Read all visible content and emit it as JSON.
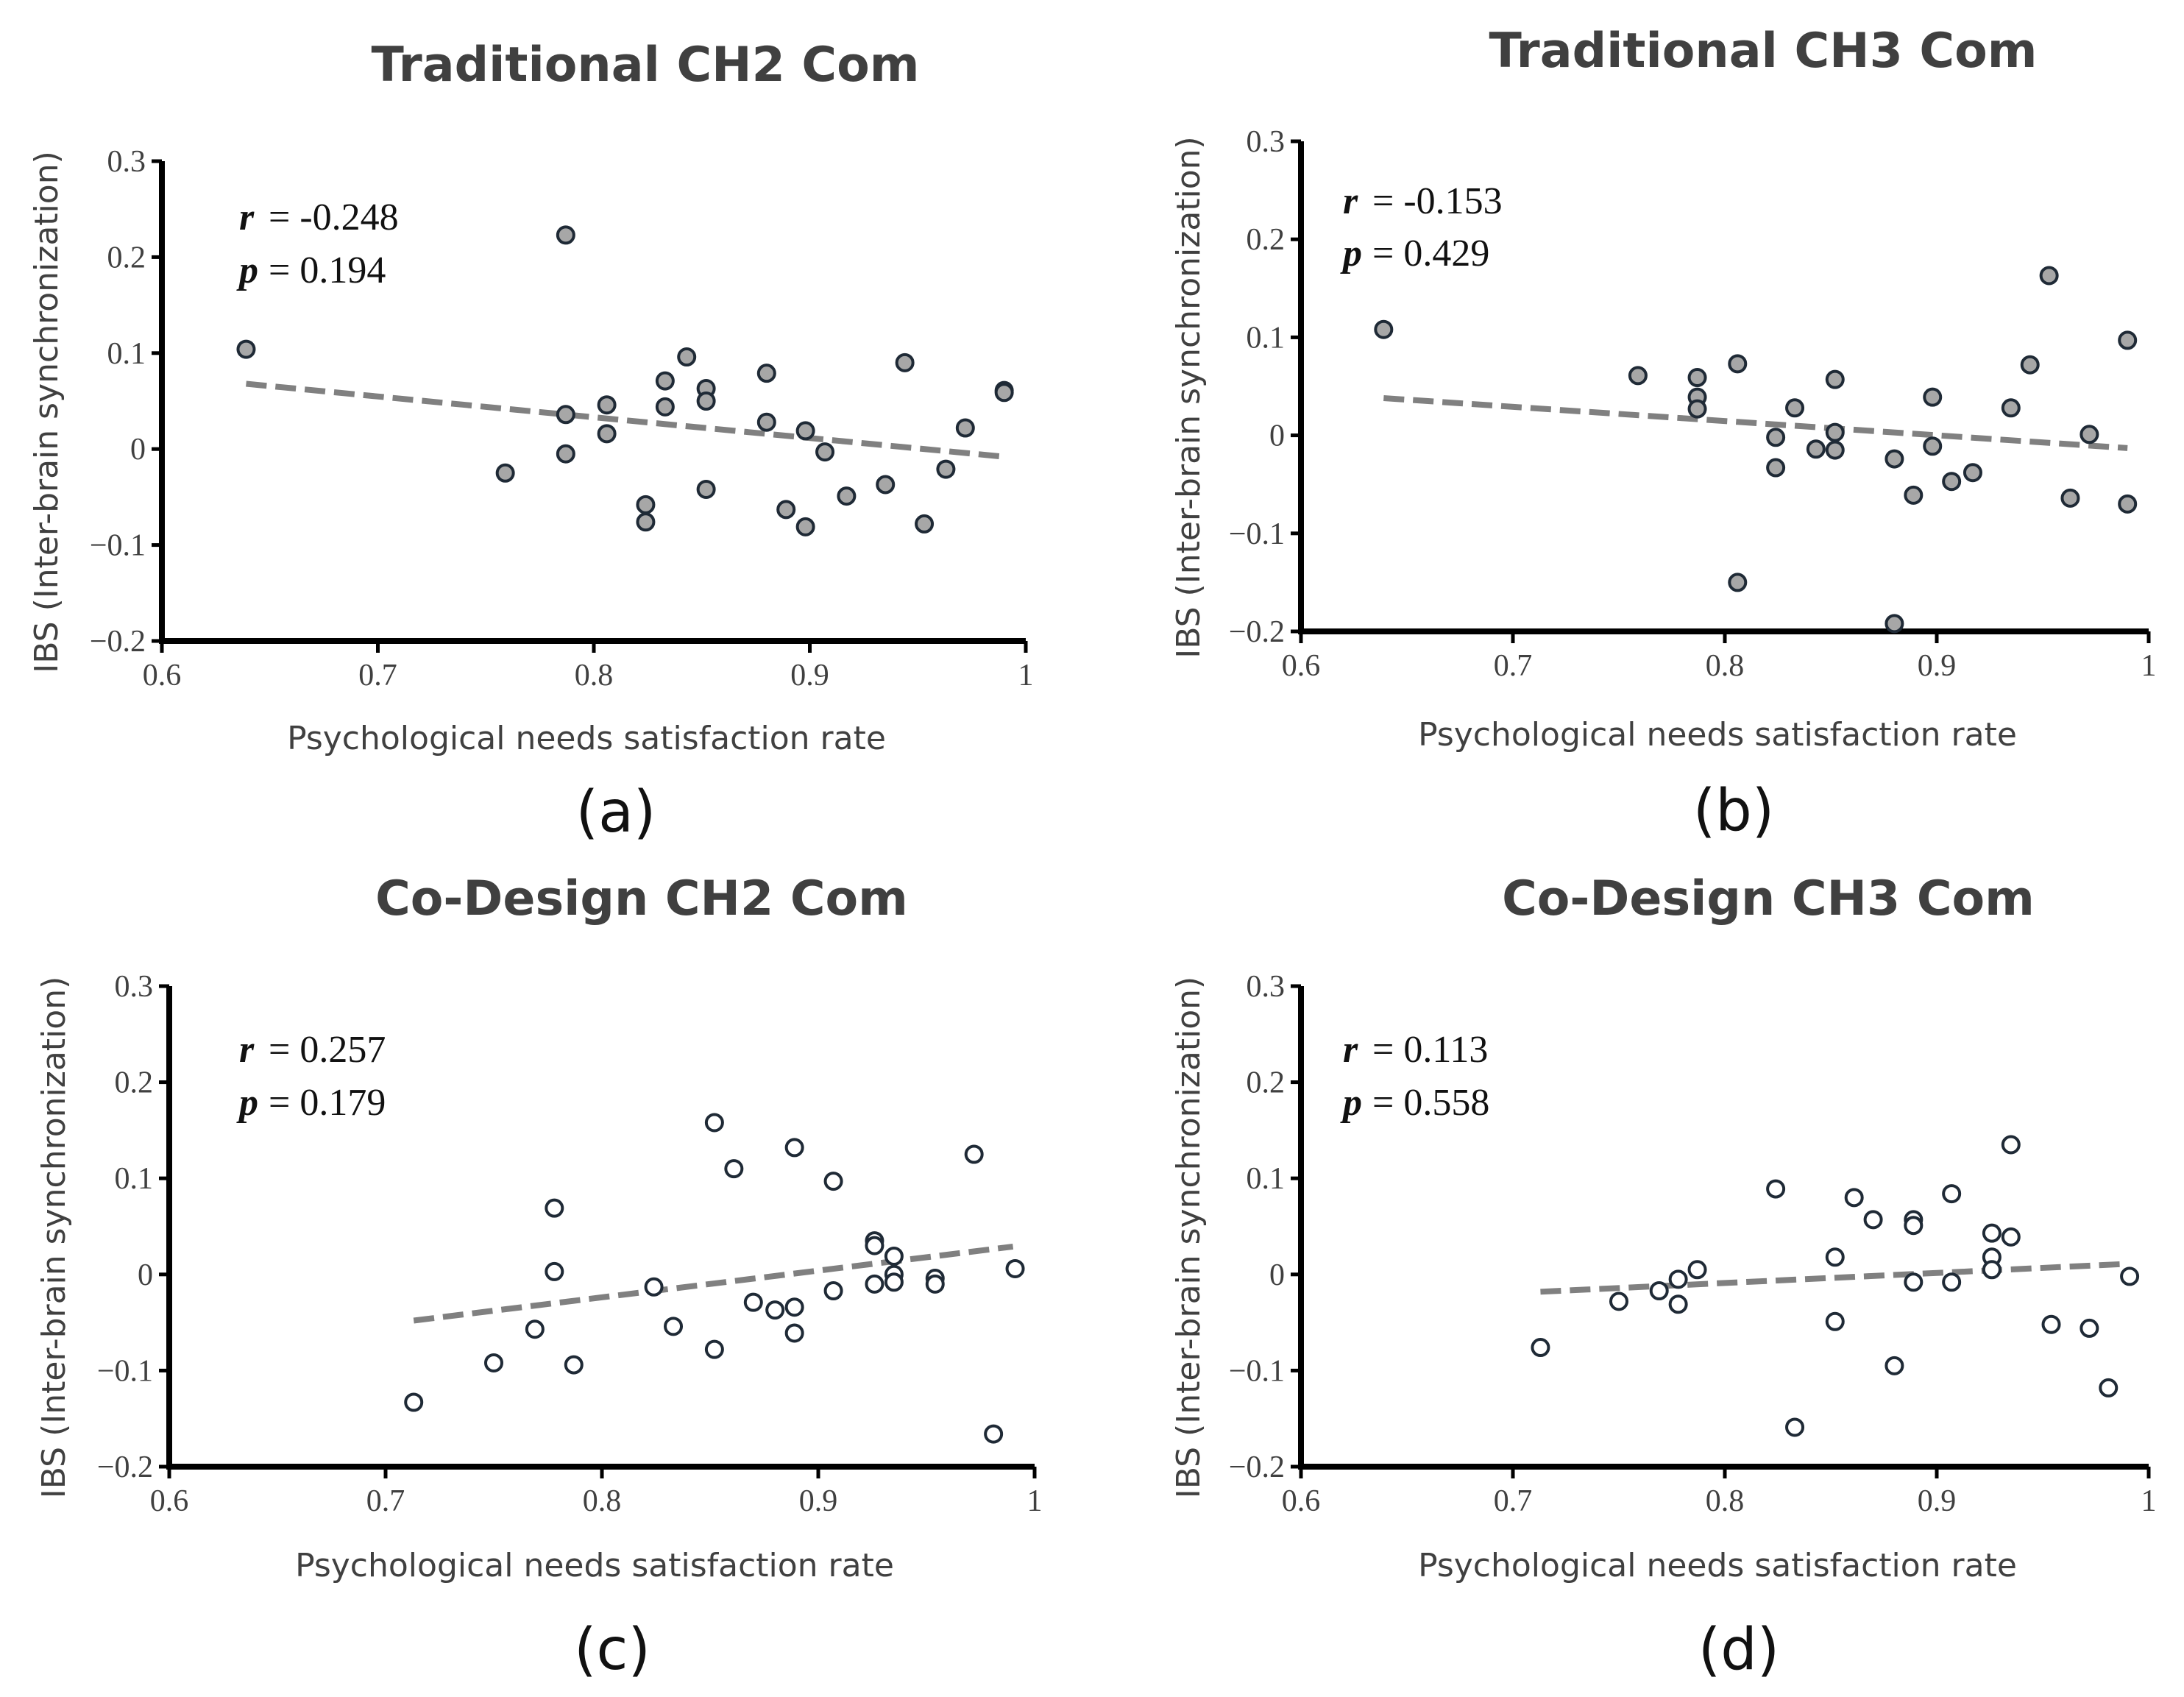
{
  "chart_data": [
    {
      "type": "scatter",
      "title": "Traditional CH2 Com",
      "subcaption": "(a)",
      "xlabel": "Psychological needs satisfaction rate",
      "ylabel": "IBS (Inter-brain synchronization)",
      "xlim": [
        0.6,
        1
      ],
      "ylim": [
        -0.2,
        0.3
      ],
      "x_ticks": [
        "0.6",
        "0.7",
        "0.8",
        "0.9",
        "1"
      ],
      "y_ticks": [
        "0.3",
        "0.2",
        "0.1",
        "0",
        "−0.1",
        "−0.2"
      ],
      "stats": {
        "r_label": "r",
        "r_value": "= -0.248",
        "p_label": "p",
        "p_value": "=  0.194"
      },
      "marker_fill": "#a7a7a7",
      "trend_color": "#808080",
      "trend": {
        "x": [
          0.639,
          0.99
        ],
        "y": [
          0.068,
          -0.008
        ]
      },
      "points": [
        {
          "x": 0.639,
          "y": 0.104
        },
        {
          "x": 0.759,
          "y": -0.025
        },
        {
          "x": 0.787,
          "y": 0.223
        },
        {
          "x": 0.787,
          "y": 0.036
        },
        {
          "x": 0.787,
          "y": -0.005
        },
        {
          "x": 0.806,
          "y": 0.046
        },
        {
          "x": 0.806,
          "y": 0.016
        },
        {
          "x": 0.824,
          "y": -0.058
        },
        {
          "x": 0.824,
          "y": -0.076
        },
        {
          "x": 0.833,
          "y": 0.071
        },
        {
          "x": 0.833,
          "y": 0.044
        },
        {
          "x": 0.843,
          "y": 0.096
        },
        {
          "x": 0.852,
          "y": 0.063
        },
        {
          "x": 0.852,
          "y": 0.05
        },
        {
          "x": 0.852,
          "y": -0.042
        },
        {
          "x": 0.88,
          "y": 0.079
        },
        {
          "x": 0.88,
          "y": 0.028
        },
        {
          "x": 0.889,
          "y": -0.063
        },
        {
          "x": 0.898,
          "y": 0.019
        },
        {
          "x": 0.898,
          "y": -0.081
        },
        {
          "x": 0.907,
          "y": -0.003
        },
        {
          "x": 0.917,
          "y": -0.049
        },
        {
          "x": 0.935,
          "y": -0.037
        },
        {
          "x": 0.944,
          "y": 0.09
        },
        {
          "x": 0.953,
          "y": -0.078
        },
        {
          "x": 0.963,
          "y": -0.021
        },
        {
          "x": 0.972,
          "y": 0.022
        },
        {
          "x": 0.99,
          "y": 0.061
        },
        {
          "x": 0.99,
          "y": 0.059
        }
      ]
    },
    {
      "type": "scatter",
      "title": "Traditional CH3 Com",
      "subcaption": "(b)",
      "xlabel": "Psychological needs satisfaction rate",
      "ylabel": "IBS (Inter-brain synchronization)",
      "xlim": [
        0.6,
        1
      ],
      "ylim": [
        -0.2,
        0.3
      ],
      "x_ticks": [
        "0.6",
        "0.7",
        "0.8",
        "0.9",
        "1"
      ],
      "y_ticks": [
        "0.3",
        "0.2",
        "0.1",
        "0",
        "−0.1",
        "−0.2"
      ],
      "stats": {
        "r_label": "r",
        "r_value": "= -0.153",
        "p_label": "p",
        "p_value": "=  0.429"
      },
      "marker_fill": "#a7a7a7",
      "trend_color": "#808080",
      "trend": {
        "x": [
          0.639,
          0.99
        ],
        "y": [
          0.038,
          -0.013
        ]
      },
      "points": [
        {
          "x": 0.639,
          "y": 0.108
        },
        {
          "x": 0.759,
          "y": 0.061
        },
        {
          "x": 0.787,
          "y": 0.059
        },
        {
          "x": 0.787,
          "y": 0.039
        },
        {
          "x": 0.787,
          "y": 0.027
        },
        {
          "x": 0.806,
          "y": 0.073
        },
        {
          "x": 0.806,
          "y": -0.15
        },
        {
          "x": 0.824,
          "y": -0.002
        },
        {
          "x": 0.824,
          "y": -0.033
        },
        {
          "x": 0.833,
          "y": 0.028
        },
        {
          "x": 0.843,
          "y": -0.014
        },
        {
          "x": 0.852,
          "y": 0.057
        },
        {
          "x": 0.852,
          "y": 0.003
        },
        {
          "x": 0.852,
          "y": -0.015
        },
        {
          "x": 0.88,
          "y": -0.024
        },
        {
          "x": 0.88,
          "y": -0.192
        },
        {
          "x": 0.889,
          "y": -0.061
        },
        {
          "x": 0.898,
          "y": 0.039
        },
        {
          "x": 0.898,
          "y": -0.011
        },
        {
          "x": 0.907,
          "y": -0.047
        },
        {
          "x": 0.917,
          "y": -0.038
        },
        {
          "x": 0.935,
          "y": 0.028
        },
        {
          "x": 0.944,
          "y": 0.072
        },
        {
          "x": 0.953,
          "y": 0.163
        },
        {
          "x": 0.963,
          "y": -0.064
        },
        {
          "x": 0.972,
          "y": 0.001
        },
        {
          "x": 0.99,
          "y": 0.097
        },
        {
          "x": 0.99,
          "y": -0.07
        }
      ]
    },
    {
      "type": "scatter",
      "title": "Co-Design CH2 Com",
      "subcaption": "(c)",
      "xlabel": "Psychological needs satisfaction rate",
      "ylabel": "IBS (Inter-brain synchronization)",
      "xlim": [
        0.6,
        1
      ],
      "ylim": [
        -0.2,
        0.3
      ],
      "x_ticks": [
        "0.6",
        "0.7",
        "0.8",
        "0.9",
        "1"
      ],
      "y_ticks": [
        "0.3",
        "0.2",
        "0.1",
        "0",
        "−0.1",
        "−0.2"
      ],
      "stats": {
        "r_label": "r",
        "r_value": "=  0.257",
        "p_label": "p",
        "p_value": "=  0.179"
      },
      "marker_fill": "#ffffff",
      "trend_color": "#808080",
      "trend": {
        "x": [
          0.713,
          0.99
        ],
        "y": [
          -0.048,
          0.029
        ]
      },
      "points": [
        {
          "x": 0.713,
          "y": -0.133
        },
        {
          "x": 0.75,
          "y": -0.092
        },
        {
          "x": 0.769,
          "y": -0.057
        },
        {
          "x": 0.778,
          "y": 0.069
        },
        {
          "x": 0.778,
          "y": 0.003
        },
        {
          "x": 0.787,
          "y": -0.094
        },
        {
          "x": 0.824,
          "y": -0.013
        },
        {
          "x": 0.833,
          "y": -0.054
        },
        {
          "x": 0.852,
          "y": 0.158
        },
        {
          "x": 0.852,
          "y": -0.078
        },
        {
          "x": 0.861,
          "y": 0.11
        },
        {
          "x": 0.87,
          "y": -0.029
        },
        {
          "x": 0.88,
          "y": -0.037
        },
        {
          "x": 0.889,
          "y": 0.132
        },
        {
          "x": 0.889,
          "y": -0.034
        },
        {
          "x": 0.889,
          "y": -0.061
        },
        {
          "x": 0.907,
          "y": 0.097
        },
        {
          "x": 0.907,
          "y": -0.017
        },
        {
          "x": 0.926,
          "y": 0.035
        },
        {
          "x": 0.926,
          "y": 0.03
        },
        {
          "x": 0.926,
          "y": -0.01
        },
        {
          "x": 0.935,
          "y": 0.019
        },
        {
          "x": 0.935,
          "y": 0.0
        },
        {
          "x": 0.935,
          "y": -0.008
        },
        {
          "x": 0.954,
          "y": -0.004
        },
        {
          "x": 0.954,
          "y": -0.01
        },
        {
          "x": 0.972,
          "y": 0.125
        },
        {
          "x": 0.981,
          "y": -0.166
        },
        {
          "x": 0.991,
          "y": 0.006
        }
      ]
    },
    {
      "type": "scatter",
      "title": "Co-Design CH3 Com",
      "subcaption": "(d)",
      "xlabel": "Psychological needs satisfaction rate",
      "ylabel": "IBS (Inter-brain synchronization)",
      "xlim": [
        0.6,
        1
      ],
      "ylim": [
        -0.2,
        0.3
      ],
      "x_ticks": [
        "0.6",
        "0.7",
        "0.8",
        "0.9",
        "1"
      ],
      "y_ticks": [
        "0.3",
        "0.2",
        "0.1",
        "0",
        "−0.1",
        "−0.2"
      ],
      "stats": {
        "r_label": "r",
        "r_value": "=  0.113",
        "p_label": "p",
        "p_value": "=  0.558"
      },
      "marker_fill": "#ffffff",
      "trend_color": "#808080",
      "trend": {
        "x": [
          0.713,
          0.99
        ],
        "y": [
          -0.018,
          0.011
        ]
      },
      "points": [
        {
          "x": 0.713,
          "y": -0.076
        },
        {
          "x": 0.75,
          "y": -0.028
        },
        {
          "x": 0.769,
          "y": -0.017
        },
        {
          "x": 0.778,
          "y": -0.005
        },
        {
          "x": 0.778,
          "y": -0.031
        },
        {
          "x": 0.787,
          "y": 0.005
        },
        {
          "x": 0.824,
          "y": 0.089
        },
        {
          "x": 0.833,
          "y": -0.159
        },
        {
          "x": 0.852,
          "y": 0.018
        },
        {
          "x": 0.852,
          "y": -0.049
        },
        {
          "x": 0.861,
          "y": 0.08
        },
        {
          "x": 0.87,
          "y": 0.057
        },
        {
          "x": 0.88,
          "y": -0.095
        },
        {
          "x": 0.889,
          "y": 0.057
        },
        {
          "x": 0.889,
          "y": 0.051
        },
        {
          "x": 0.889,
          "y": -0.008
        },
        {
          "x": 0.907,
          "y": 0.084
        },
        {
          "x": 0.907,
          "y": -0.008
        },
        {
          "x": 0.926,
          "y": 0.043
        },
        {
          "x": 0.926,
          "y": 0.018
        },
        {
          "x": 0.926,
          "y": 0.005
        },
        {
          "x": 0.935,
          "y": 0.135
        },
        {
          "x": 0.935,
          "y": 0.039
        },
        {
          "x": 0.954,
          "y": -0.052
        },
        {
          "x": 0.972,
          "y": -0.056
        },
        {
          "x": 0.981,
          "y": -0.118
        },
        {
          "x": 0.991,
          "y": -0.002
        }
      ]
    }
  ]
}
